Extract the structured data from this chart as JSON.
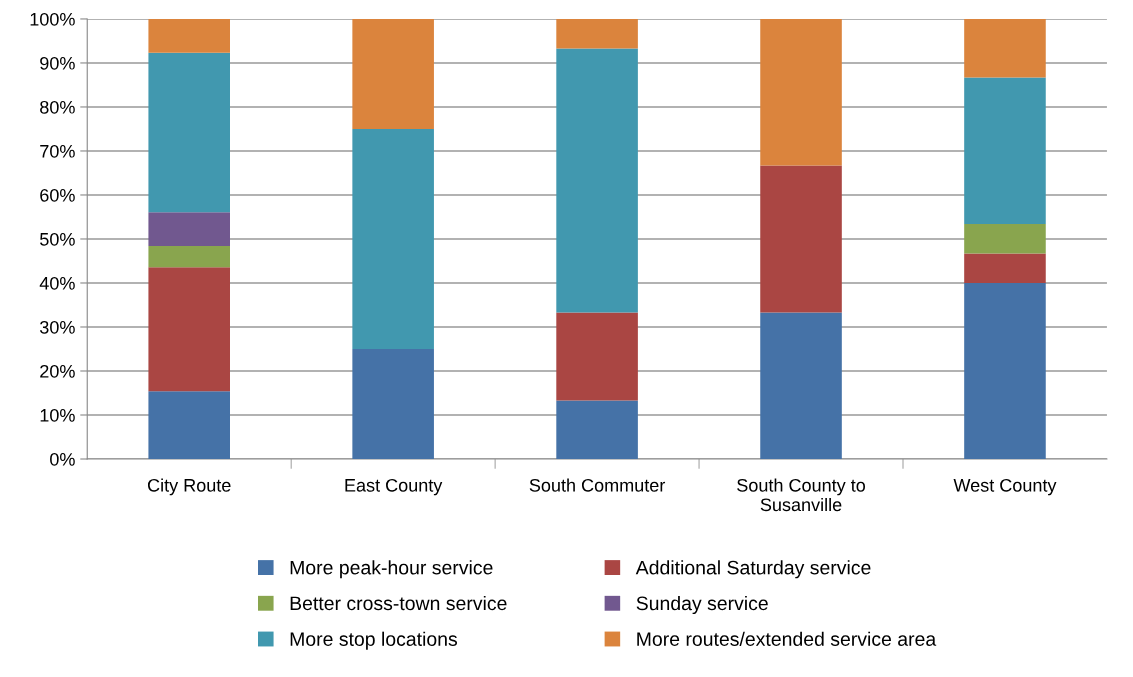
{
  "chart_data": {
    "type": "bar",
    "stacked": true,
    "categories": [
      "City Route",
      "East County",
      "South Commuter",
      "South County to\nSusanville",
      "West County"
    ],
    "series": [
      {
        "name": "More peak-hour service",
        "color": "#4572a7",
        "values": [
          15.4,
          25,
          13.3,
          33.3,
          40
        ]
      },
      {
        "name": "Additional Saturday service",
        "color": "#aa4643",
        "values": [
          28.2,
          0,
          20,
          33.4,
          6.7
        ]
      },
      {
        "name": "Better cross-town service",
        "color": "#89a54e",
        "values": [
          4.8,
          0,
          0,
          0,
          6.7
        ]
      },
      {
        "name": "Sunday service",
        "color": "#71588f",
        "values": [
          7.7,
          0,
          0,
          0,
          0
        ]
      },
      {
        "name": "More stop locations",
        "color": "#4198af",
        "values": [
          36.2,
          50,
          60,
          0,
          33.3
        ]
      },
      {
        "name": "More routes/extended service area",
        "color": "#db843d",
        "values": [
          7.7,
          25,
          6.7,
          33.3,
          13.3
        ]
      }
    ],
    "ylim": [
      0,
      100
    ],
    "yticks": [
      {
        "value": 0,
        "label": "0%"
      },
      {
        "value": 10,
        "label": "10%"
      },
      {
        "value": 20,
        "label": "20%"
      },
      {
        "value": 30,
        "label": "30%"
      },
      {
        "value": 40,
        "label": "40%"
      },
      {
        "value": 50,
        "label": "50%"
      },
      {
        "value": 60,
        "label": "60%"
      },
      {
        "value": 70,
        "label": "70%"
      },
      {
        "value": 80,
        "label": "80%"
      },
      {
        "value": 90,
        "label": "90%"
      },
      {
        "value": 100,
        "label": "100%"
      }
    ],
    "grid": "y",
    "legend": "bottom"
  }
}
